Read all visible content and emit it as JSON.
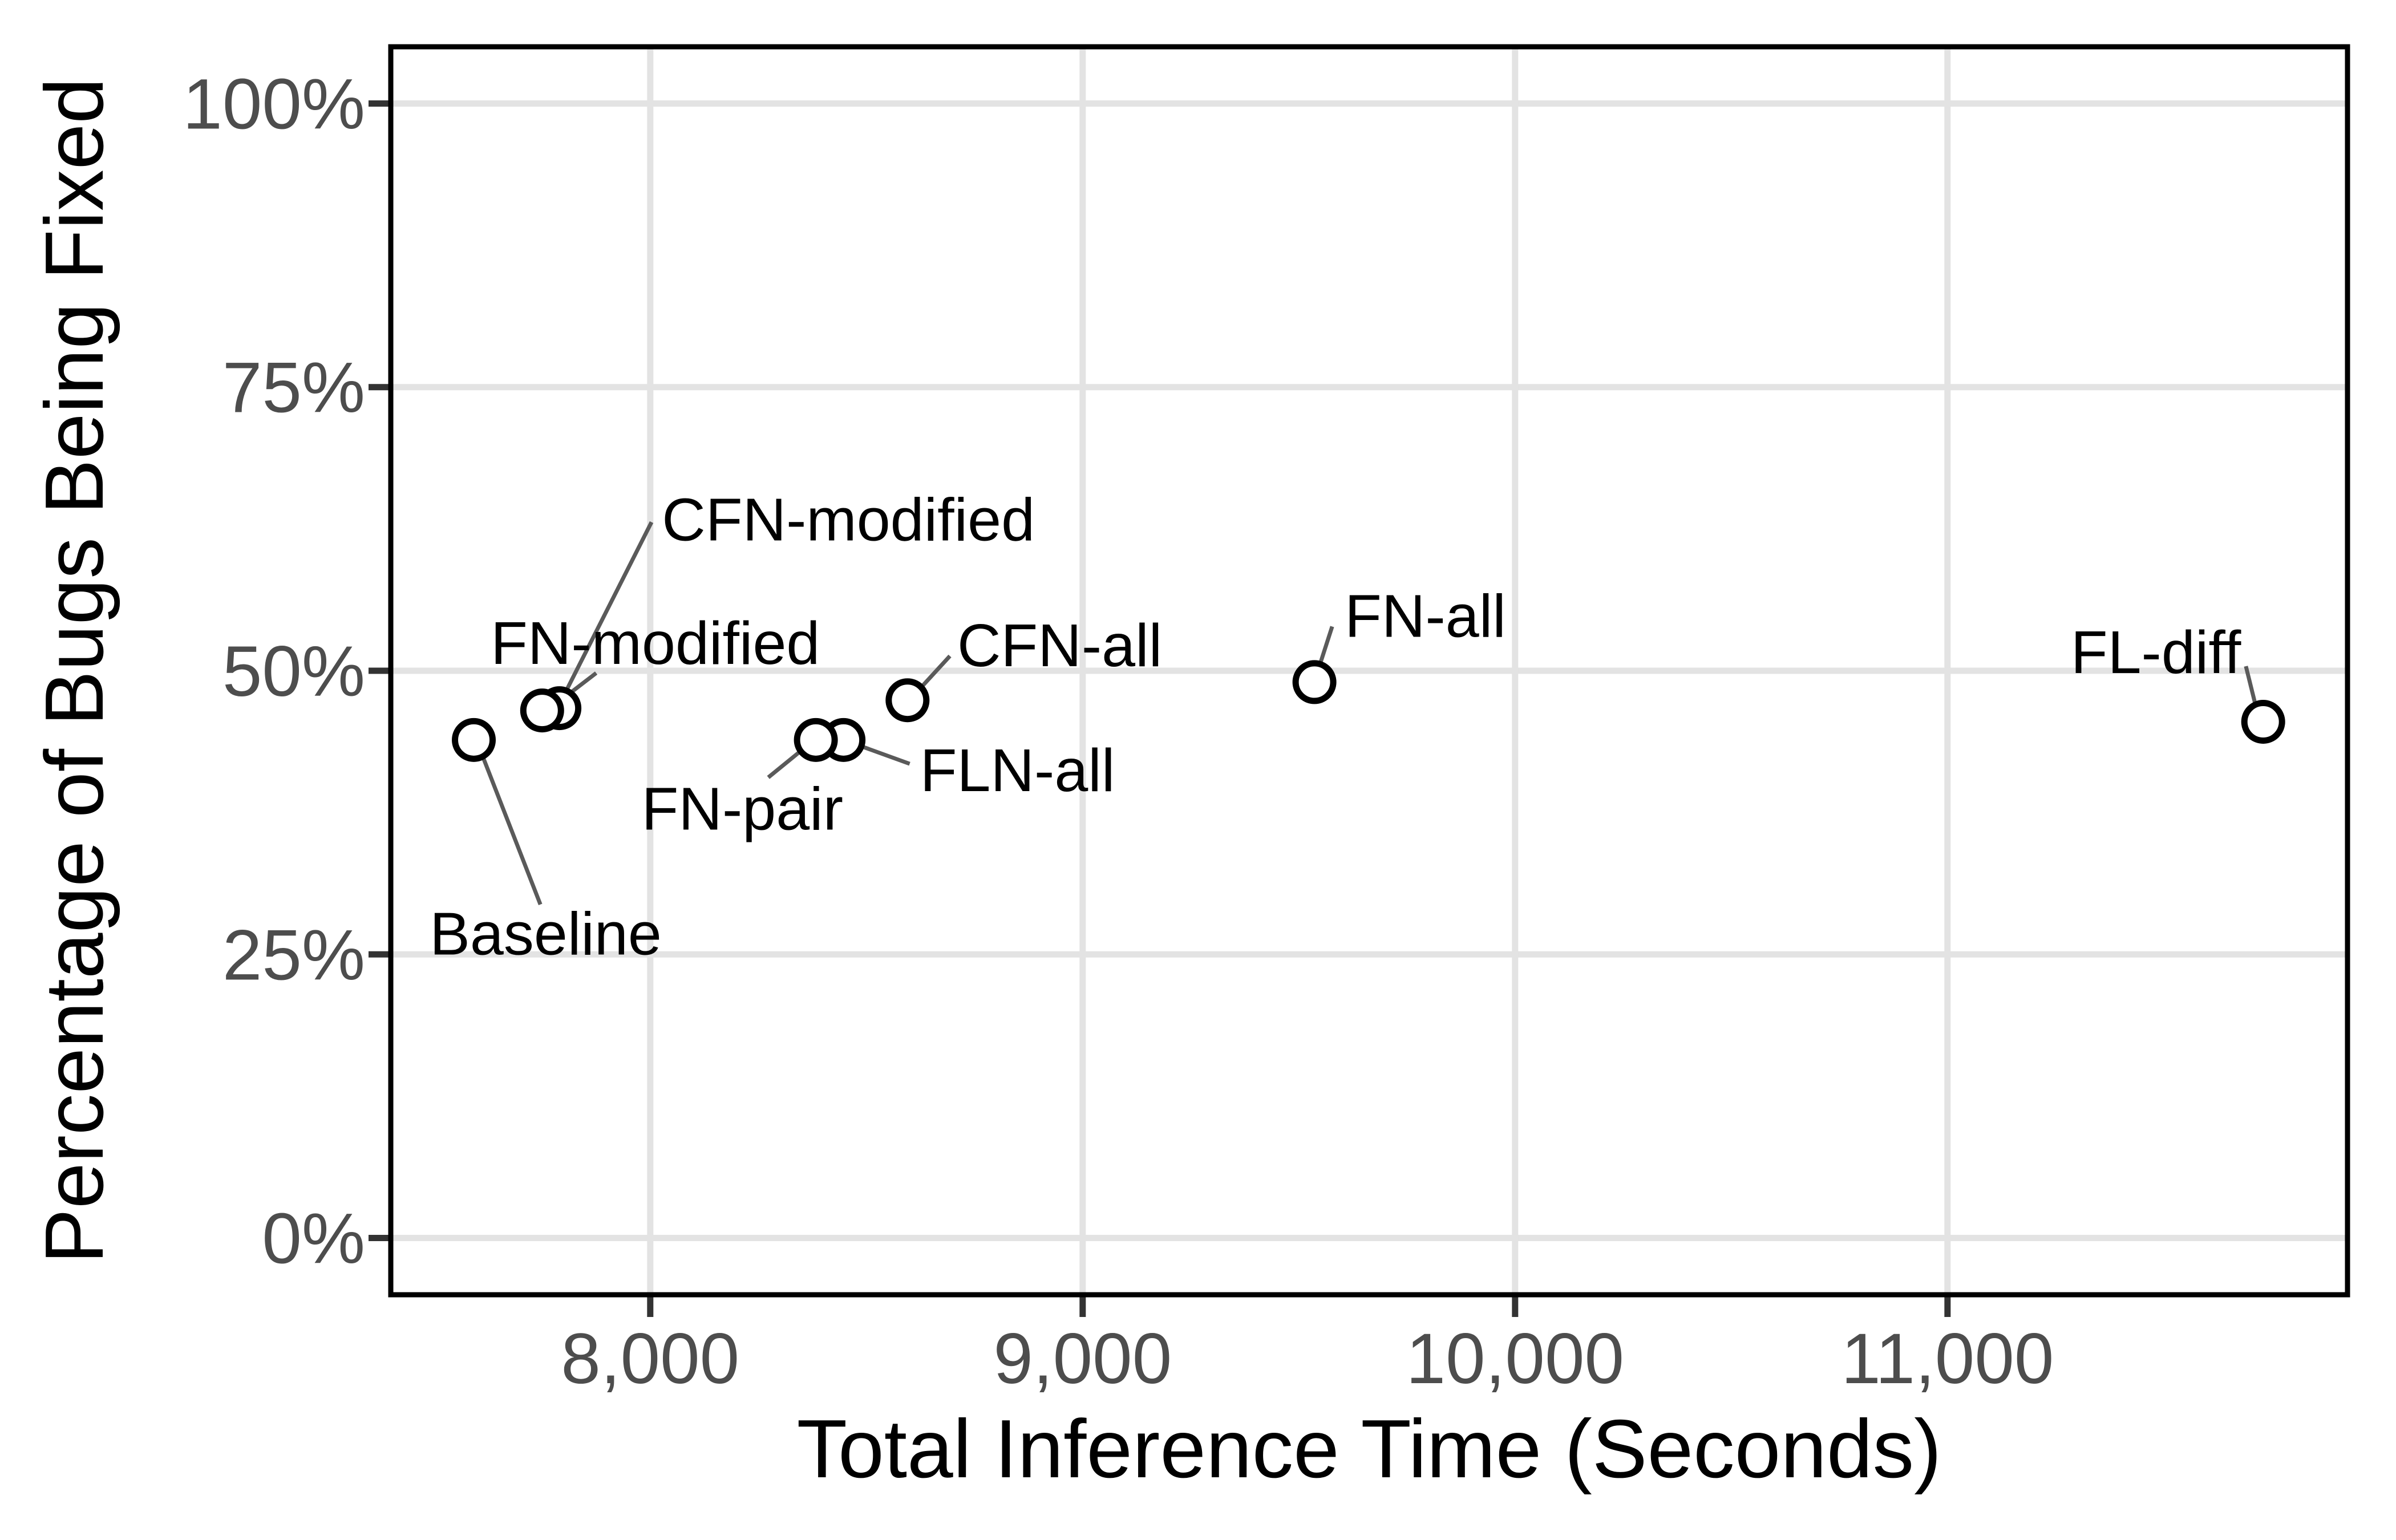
{
  "colors": {
    "background": "#ffffff",
    "panel_border": "#000000",
    "gridline": "#e3e3e3",
    "tick_mark": "#333333",
    "tick_label": "#4d4d4d",
    "axis_title": "#000000",
    "point_stroke": "#000000",
    "point_fill": "#ffffff",
    "leader_line": "#5a5a5a",
    "annotation_text": "#000000"
  },
  "chart_data": {
    "type": "scatter",
    "title": "",
    "xlabel": "Total Inference Time (Seconds)",
    "ylabel": "Percentage of Bugs Being Fixed",
    "xlim": [
      7400,
      11925
    ],
    "ylim": [
      -5,
      105
    ],
    "grid": true,
    "legend_position": "none",
    "marker": "open-circle",
    "x_ticks": [
      {
        "value": 8000,
        "label": "8,000"
      },
      {
        "value": 9000,
        "label": "9,000"
      },
      {
        "value": 10000,
        "label": "10,000"
      },
      {
        "value": 11000,
        "label": "11,000"
      }
    ],
    "y_ticks": [
      {
        "value": 0,
        "label": "0%"
      },
      {
        "value": 25,
        "label": "25%"
      },
      {
        "value": 50,
        "label": "50%"
      },
      {
        "value": 75,
        "label": "75%"
      },
      {
        "value": 100,
        "label": "100%"
      }
    ],
    "points": [
      {
        "label": "Baseline",
        "x": 7592,
        "y": 43.9,
        "label_pos": {
          "x": 7490,
          "y": 25.0,
          "anchor": "start"
        },
        "leader": {
          "x1": 7607,
          "y1": 43.0,
          "x2": 7746,
          "y2": 29.4
        }
      },
      {
        "label": "CFN-modified",
        "x": 7790,
        "y": 46.7,
        "label_pos": {
          "x": 8027,
          "y": 61.5,
          "anchor": "start"
        },
        "leader": {
          "x1": 8003,
          "y1": 63.1,
          "x2": 7792,
          "y2": 47.2
        }
      },
      {
        "label": "FN-modified",
        "x": 7750,
        "y": 46.5,
        "label_pos": {
          "x": 7631,
          "y": 50.6,
          "anchor": "start"
        },
        "leader": {
          "x1": 7875,
          "y1": 49.8,
          "x2": 7793,
          "y2": 47.4
        }
      },
      {
        "label": "FLN-all",
        "x": 8447,
        "y": 43.9,
        "label_pos": {
          "x": 8624,
          "y": 39.4,
          "anchor": "start"
        },
        "leader": {
          "x1": 8484,
          "y1": 43.4,
          "x2": 8600,
          "y2": 41.8
        }
      },
      {
        "label": "FN-pair",
        "x": 8383,
        "y": 43.9,
        "label_pos": {
          "x": 7980,
          "y": 36.0,
          "anchor": "start"
        },
        "leader": {
          "x1": 8360,
          "y1": 43.3,
          "x2": 8273,
          "y2": 40.6
        }
      },
      {
        "label": "CFN-all",
        "x": 8595,
        "y": 47.4,
        "label_pos": {
          "x": 8710,
          "y": 50.4,
          "anchor": "start"
        },
        "leader": {
          "x1": 8616,
          "y1": 48.1,
          "x2": 8693,
          "y2": 51.3
        }
      },
      {
        "label": "FN-all",
        "x": 9536,
        "y": 49.0,
        "label_pos": {
          "x": 9606,
          "y": 53.0,
          "anchor": "start"
        },
        "leader": {
          "x1": 9577,
          "y1": 53.9,
          "x2": 9544,
          "y2": 50.0
        }
      },
      {
        "label": "FL-diff",
        "x": 11730,
        "y": 45.5,
        "label_pos": {
          "x": 11285,
          "y": 49.8,
          "anchor": "start"
        },
        "leader": {
          "x1": 11690,
          "y1": 50.4,
          "x2": 11716,
          "y2": 46.4
        }
      }
    ]
  }
}
